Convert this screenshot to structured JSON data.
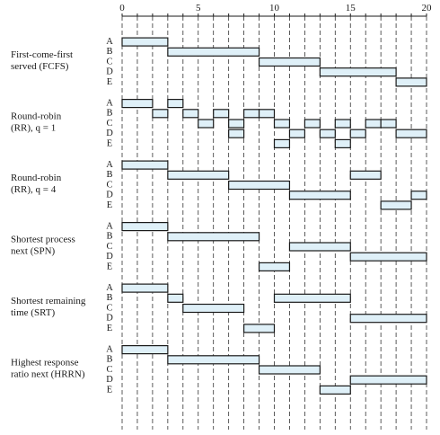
{
  "axis": {
    "min": 0,
    "max": 20,
    "tick_labels": [
      "0",
      "5",
      "10",
      "15",
      "20"
    ],
    "tick_values": [
      0,
      5,
      10,
      15,
      20
    ]
  },
  "processes": [
    "A",
    "B",
    "C",
    "D",
    "E"
  ],
  "colors": {
    "bar_fill": "#dff0f8",
    "stroke": "#1a1a1a"
  },
  "policies": [
    {
      "label_lines": [
        "First-come-first",
        "served (FCFS)"
      ],
      "bars": [
        [
          [
            0,
            3
          ]
        ],
        [
          [
            3,
            9
          ]
        ],
        [
          [
            9,
            13
          ]
        ],
        [
          [
            13,
            18
          ]
        ],
        [
          [
            18,
            20
          ]
        ]
      ]
    },
    {
      "label_lines": [
        "Round-robin",
        "(RR), q = 1"
      ],
      "bars": [
        [
          [
            0,
            2
          ],
          [
            3,
            4
          ]
        ],
        [
          [
            2,
            3
          ],
          [
            4,
            5
          ],
          [
            6,
            7
          ],
          [
            8,
            9
          ],
          [
            9,
            10
          ]
        ],
        [
          [
            5,
            6
          ],
          [
            7,
            8
          ],
          [
            10,
            11
          ],
          [
            12,
            13
          ],
          [
            14,
            15
          ],
          [
            16,
            17
          ],
          [
            17,
            18
          ]
        ],
        [
          [
            7,
            8
          ],
          [
            11,
            12
          ],
          [
            13,
            14
          ],
          [
            15,
            16
          ],
          [
            18,
            20
          ]
        ],
        [
          [
            10,
            11
          ],
          [
            14,
            15
          ]
        ]
      ]
    },
    {
      "label_lines": [
        "Round-robin",
        "(RR), q = 4"
      ],
      "bars": [
        [
          [
            0,
            3
          ]
        ],
        [
          [
            3,
            7
          ],
          [
            15,
            17
          ]
        ],
        [
          [
            7,
            11
          ]
        ],
        [
          [
            11,
            15
          ],
          [
            19,
            20
          ]
        ],
        [
          [
            17,
            19
          ]
        ]
      ]
    },
    {
      "label_lines": [
        "Shortest process",
        "next (SPN)"
      ],
      "bars": [
        [
          [
            0,
            3
          ]
        ],
        [
          [
            3,
            9
          ]
        ],
        [
          [
            11,
            15
          ]
        ],
        [
          [
            15,
            20
          ]
        ],
        [
          [
            9,
            11
          ]
        ]
      ]
    },
    {
      "label_lines": [
        "Shortest remaining",
        "time (SRT)"
      ],
      "bars": [
        [
          [
            0,
            3
          ]
        ],
        [
          [
            3,
            4
          ],
          [
            10,
            15
          ]
        ],
        [
          [
            4,
            8
          ]
        ],
        [
          [
            15,
            20
          ]
        ],
        [
          [
            8,
            10
          ]
        ]
      ]
    },
    {
      "label_lines": [
        "Highest response",
        "ratio next (HRRN)"
      ],
      "bars": [
        [
          [
            0,
            3
          ]
        ],
        [
          [
            3,
            9
          ]
        ],
        [
          [
            9,
            13
          ]
        ],
        [
          [
            15,
            20
          ]
        ],
        [
          [
            13,
            15
          ]
        ]
      ]
    }
  ]
}
